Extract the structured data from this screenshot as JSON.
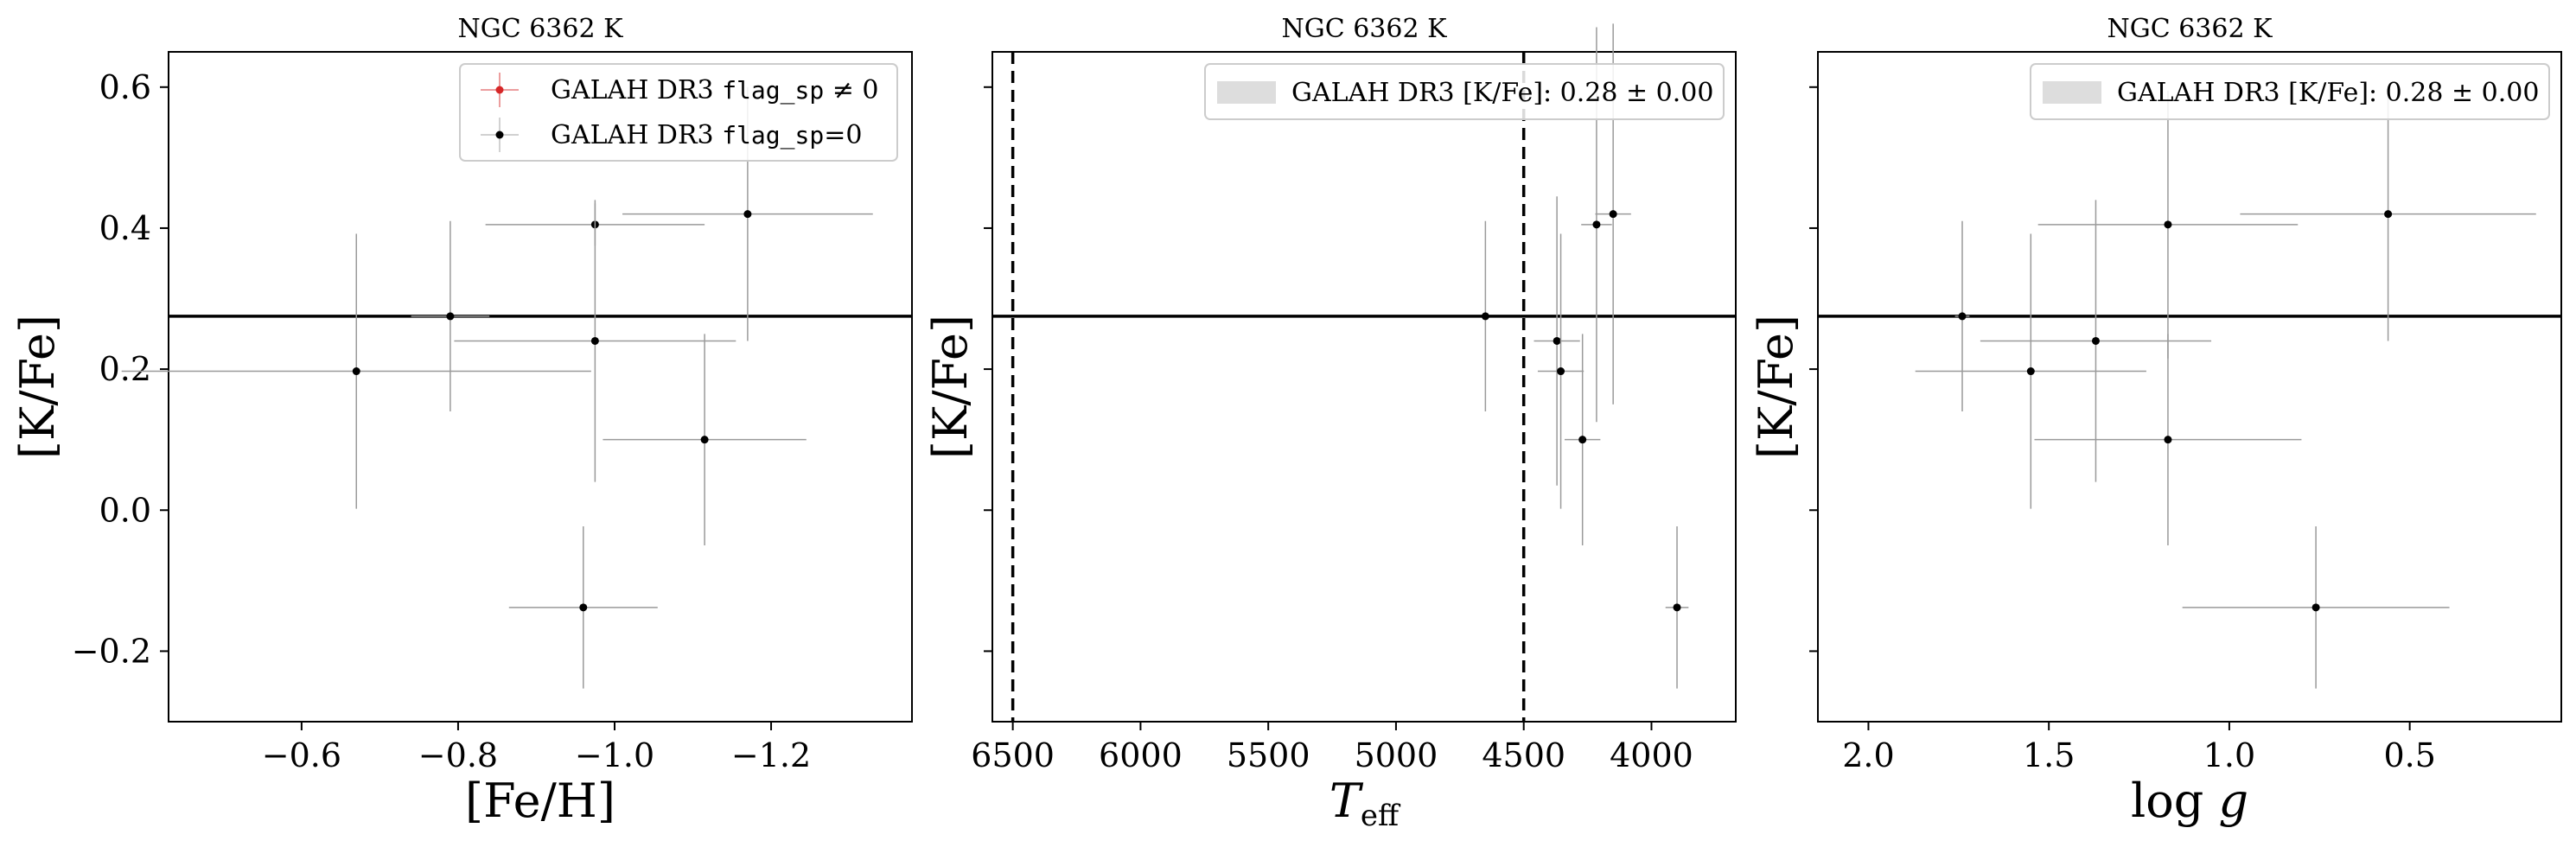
{
  "chart_data": [
    {
      "type": "scatter",
      "title": "NGC 6362 K",
      "xlabel": "[Fe/H]",
      "ylabel": "[K/Fe]",
      "xlim": [
        -0.43,
        -1.38
      ],
      "ylim": [
        -0.3,
        0.65
      ],
      "xticks": [
        -0.6,
        -0.8,
        -1.0,
        -1.2
      ],
      "xtick_labels": [
        "−0.6",
        "−0.8",
        "−1.0",
        "−1.2"
      ],
      "yticks": [
        -0.2,
        0.0,
        0.2,
        0.4,
        0.6
      ],
      "ytick_labels": [
        "−0.2",
        "0.0",
        "0.2",
        "0.4",
        "0.6"
      ],
      "hline": 0.275,
      "legend": {
        "position": "top-right",
        "entries": [
          {
            "prefix": "GALAH DR3 ",
            "code": "flag_sp",
            "suffix": " ≠ 0",
            "color": "#d62728"
          },
          {
            "prefix": "GALAH DR3 ",
            "code": "flag_sp",
            "suffix": "=0",
            "color": "#000000"
          }
        ]
      },
      "points": [
        {
          "x": -0.67,
          "y": 0.197,
          "xerr": 0.3,
          "yerr": 0.195
        },
        {
          "x": -0.79,
          "y": 0.275,
          "xerr": 0.05,
          "yerr": 0.135
        },
        {
          "x": -0.975,
          "y": 0.405,
          "xerr": 0.14,
          "yerr": 0.03
        },
        {
          "x": -0.975,
          "y": 0.24,
          "xerr": 0.18,
          "yerr": 0.2
        },
        {
          "x": -1.17,
          "y": 0.42,
          "xerr": 0.16,
          "yerr": 0.18
        },
        {
          "x": -1.115,
          "y": 0.1,
          "xerr": 0.13,
          "yerr": 0.15
        },
        {
          "x": -0.96,
          "y": -0.138,
          "xerr": 0.095,
          "yerr": 0.115
        }
      ]
    },
    {
      "type": "scatter",
      "title": "NGC 6362 K",
      "xlabel": "T_eff",
      "ylabel": "[K/Fe]",
      "xlim": [
        6580,
        3670
      ],
      "ylim": [
        -0.3,
        0.65
      ],
      "xticks": [
        6500,
        6000,
        5500,
        5000,
        4500,
        4000
      ],
      "xtick_labels": [
        "6500",
        "6000",
        "5500",
        "5000",
        "4500",
        "4000"
      ],
      "yticks": [
        -0.2,
        0.0,
        0.2,
        0.4,
        0.6
      ],
      "hline": 0.275,
      "vlines": [
        6500,
        4500
      ],
      "legend": {
        "position": "top-right",
        "entries": [
          {
            "label": "GALAH DR3 [K/Fe]: 0.28 ± 0.00",
            "color": "#dddddd"
          }
        ]
      },
      "points": [
        {
          "x": 4650,
          "y": 0.275,
          "xerr": 10,
          "yerr": 0.135
        },
        {
          "x": 4215,
          "y": 0.405,
          "xerr": 60,
          "yerr": 0.28
        },
        {
          "x": 4150,
          "y": 0.42,
          "xerr": 70,
          "yerr": 0.27
        },
        {
          "x": 4370,
          "y": 0.24,
          "xerr": 90,
          "yerr": 0.205
        },
        {
          "x": 4355,
          "y": 0.197,
          "xerr": 90,
          "yerr": 0.195
        },
        {
          "x": 4270,
          "y": 0.1,
          "xerr": 70,
          "yerr": 0.15
        },
        {
          "x": 3900,
          "y": -0.138,
          "xerr": 45,
          "yerr": 0.115
        }
      ]
    },
    {
      "type": "scatter",
      "title": "NGC 6362 K",
      "xlabel": "log g",
      "ylabel": "[K/Fe]",
      "xlim": [
        2.14,
        0.08
      ],
      "ylim": [
        -0.3,
        0.65
      ],
      "xticks": [
        2.0,
        1.5,
        1.0,
        0.5
      ],
      "xtick_labels": [
        "2.0",
        "1.5",
        "1.0",
        "0.5"
      ],
      "yticks": [
        -0.2,
        0.0,
        0.2,
        0.4,
        0.6
      ],
      "hline": 0.275,
      "legend": {
        "position": "top-right",
        "entries": [
          {
            "label": "GALAH DR3 [K/Fe]: 0.28 ± 0.00",
            "color": "#dddddd"
          }
        ]
      },
      "points": [
        {
          "x": 1.74,
          "y": 0.275,
          "xerr": 0.02,
          "yerr": 0.135
        },
        {
          "x": 1.55,
          "y": 0.197,
          "xerr": 0.32,
          "yerr": 0.195
        },
        {
          "x": 1.37,
          "y": 0.24,
          "xerr": 0.32,
          "yerr": 0.2
        },
        {
          "x": 1.17,
          "y": 0.405,
          "xerr": 0.36,
          "yerr": 0.19
        },
        {
          "x": 1.17,
          "y": 0.1,
          "xerr": 0.37,
          "yerr": 0.15
        },
        {
          "x": 0.56,
          "y": 0.42,
          "xerr": 0.41,
          "yerr": 0.18
        },
        {
          "x": 0.76,
          "y": -0.138,
          "xerr": 0.37,
          "yerr": 0.115
        }
      ]
    }
  ]
}
